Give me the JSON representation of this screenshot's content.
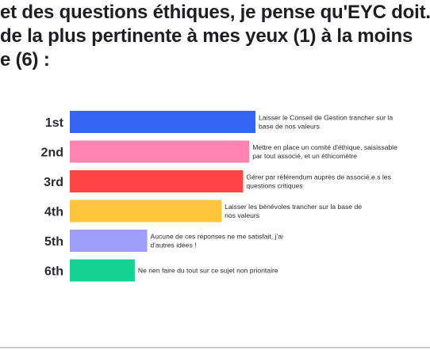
{
  "title_lines": [
    "et des questions éthiques, je pense qu'EYC doit.",
    "de la plus pertinente à mes yeux (1) à la moins",
    "e (6) :"
  ],
  "chart_data": {
    "type": "bar",
    "orientation": "horizontal",
    "categories": [
      "1st",
      "2nd",
      "3rd",
      "4th",
      "5th",
      "6th"
    ],
    "values": [
      6,
      5.8,
      5.6,
      4.9,
      2.5,
      2.1
    ],
    "xlim": [
      0,
      10
    ],
    "grid": false,
    "legend": "none",
    "colors": [
      "#3563f2",
      "#ff85b0",
      "#ff4444",
      "#ffc43b",
      "#9d9ef7",
      "#14d392"
    ],
    "data_labels": [
      [
        "Laisser le Conseil de Gestion trancher sur la",
        "base de nos valeurs"
      ],
      [
        "Mettre en place un comité d'éthique, saisissable",
        "par tout associé, et un éthicomètre"
      ],
      [
        "Gérer par référendum auprès de associé.e.s les",
        "questions critiques"
      ],
      [
        "Laisser les bénévoles trancher sur la base de",
        "nos valeurs"
      ],
      [
        "Aucune de ces réponses ne me satisfait, j'ai",
        "d'autres idées !"
      ],
      [
        "Ne rien faire du tout sur ce sujet non prioritaire"
      ]
    ]
  }
}
